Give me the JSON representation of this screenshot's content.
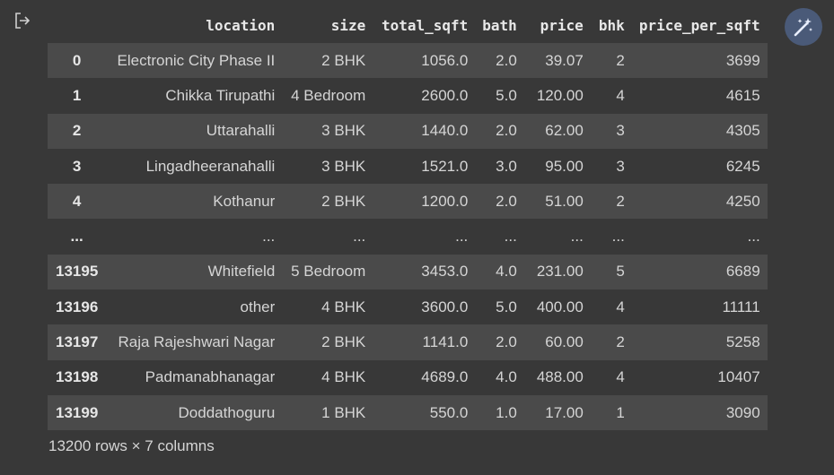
{
  "table": {
    "headers": [
      "",
      "location",
      "size",
      "total_sqft",
      "bath",
      "price",
      "bhk",
      "price_per_sqft"
    ],
    "rows": [
      [
        "0",
        "Electronic City Phase II",
        "2 BHK",
        "1056.0",
        "2.0",
        "39.07",
        "2",
        "3699"
      ],
      [
        "1",
        "Chikka Tirupathi",
        "4 Bedroom",
        "2600.0",
        "5.0",
        "120.00",
        "4",
        "4615"
      ],
      [
        "2",
        "Uttarahalli",
        "3 BHK",
        "1440.0",
        "2.0",
        "62.00",
        "3",
        "4305"
      ],
      [
        "3",
        "Lingadheeranahalli",
        "3 BHK",
        "1521.0",
        "3.0",
        "95.00",
        "3",
        "6245"
      ],
      [
        "4",
        "Kothanur",
        "2 BHK",
        "1200.0",
        "2.0",
        "51.00",
        "2",
        "4250"
      ],
      [
        "...",
        "...",
        "...",
        "...",
        "...",
        "...",
        "...",
        "..."
      ],
      [
        "13195",
        "Whitefield",
        "5 Bedroom",
        "3453.0",
        "4.0",
        "231.00",
        "5",
        "6689"
      ],
      [
        "13196",
        "other",
        "4 BHK",
        "3600.0",
        "5.0",
        "400.00",
        "4",
        "11111"
      ],
      [
        "13197",
        "Raja Rajeshwari Nagar",
        "2 BHK",
        "1141.0",
        "2.0",
        "60.00",
        "2",
        "5258"
      ],
      [
        "13198",
        "Padmanabhanagar",
        "4 BHK",
        "4689.0",
        "4.0",
        "488.00",
        "4",
        "10407"
      ],
      [
        "13199",
        "Doddathoguru",
        "1 BHK",
        "550.0",
        "1.0",
        "17.00",
        "1",
        "3090"
      ]
    ]
  },
  "footer": "13200 rows × 7 columns",
  "icons": {
    "output": "output-redirect-icon",
    "magic": "magic-wand-icon"
  },
  "colors": {
    "background": "#383838",
    "row_stripe": "#4a4a4a",
    "magic_button": "#4a5a78"
  }
}
